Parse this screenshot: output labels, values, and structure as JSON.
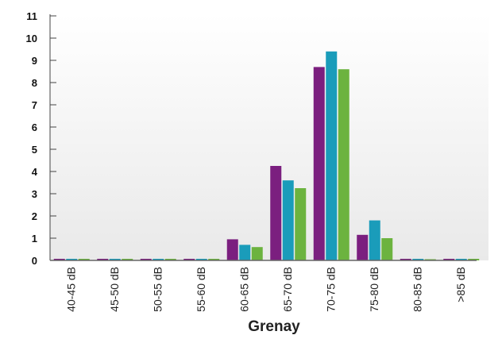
{
  "chart_data": {
    "type": "bar",
    "title": "",
    "xlabel": "Grenay",
    "ylabel": "",
    "ylim": [
      0,
      11
    ],
    "yticks": [
      "0",
      "1",
      "2",
      "3",
      "4",
      "5",
      "6",
      "7",
      "8",
      "9",
      "10",
      "11"
    ],
    "categories": [
      "40-45 dB",
      "45-50 dB",
      "50-55 dB",
      "55-60 dB",
      "60-65 dB",
      "65-70 dB",
      "70-75 dB",
      "75-80 dB",
      "80-85 dB",
      ">85 dB"
    ],
    "series": [
      {
        "color": "#7b1f7f",
        "values": [
          0,
          0,
          0,
          0,
          0.95,
          4.25,
          8.7,
          1.15,
          0,
          0
        ]
      },
      {
        "color": "#1a9cba",
        "values": [
          0,
          0,
          0,
          0,
          0.7,
          3.6,
          9.4,
          1.8,
          0,
          0
        ]
      },
      {
        "color": "#6cb33f",
        "values": [
          0,
          0,
          0,
          0,
          0.6,
          3.25,
          8.6,
          1.0,
          0.05,
          0
        ]
      }
    ],
    "grid": false,
    "legend": "none"
  }
}
